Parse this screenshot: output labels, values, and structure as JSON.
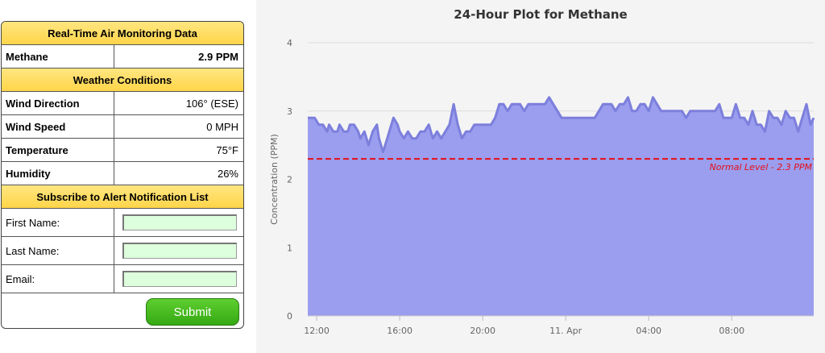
{
  "monitor": {
    "title": "Real-Time Air Monitoring Data",
    "gas_label": "Methane",
    "gas_value": "2.9 PPM"
  },
  "weather": {
    "title": "Weather Conditions",
    "rows": [
      {
        "label": "Wind Direction",
        "value": "106° (ESE)"
      },
      {
        "label": "Wind Speed",
        "value": "0 MPH"
      },
      {
        "label": "Temperature",
        "value": "75°F"
      },
      {
        "label": "Humidity",
        "value": "26%"
      }
    ]
  },
  "subscribe": {
    "title": "Subscribe to Alert Notification List",
    "first_name_label": "First Name:",
    "last_name_label": "Last Name:",
    "email_label": "Email:",
    "first_name_value": "",
    "last_name_value": "",
    "email_value": "",
    "submit_label": "Submit"
  },
  "colors": {
    "header_yellow": "#ffd54a",
    "submit_green": "#35a914",
    "area_fill": "#9b9eee",
    "line_stroke": "#7c7fdc",
    "threshold_red": "#e3101a"
  },
  "chart_data": {
    "type": "area",
    "title": "24-Hour Plot for Methane",
    "xlabel": "",
    "ylabel": "Concentration (PPM)",
    "ylim": [
      0,
      4
    ],
    "yticks": [
      "0",
      "1",
      "2",
      "3",
      "4"
    ],
    "xtick_labels": [
      "12:00",
      "16:00",
      "20:00",
      "11. Apr",
      "04:00",
      "08:00"
    ],
    "xtick_hours": [
      0,
      4,
      8,
      12,
      16,
      20
    ],
    "xlim_hours": [
      -0.43,
      23.95
    ],
    "grid": true,
    "threshold": {
      "value": 2.3,
      "label": "Normal Level - 2.3 PPM"
    },
    "series": [
      {
        "x": [
          -0.43,
          -0.1,
          0.1,
          0.3,
          0.5,
          0.6,
          0.8,
          1.0,
          1.1,
          1.3,
          1.5,
          1.6,
          1.8,
          2.0,
          2.1,
          2.3,
          2.5,
          2.7,
          2.9,
          3.0,
          3.2,
          3.4,
          3.5,
          3.7,
          3.9,
          4.0,
          4.2,
          4.4,
          4.6,
          4.8,
          5.0,
          5.2,
          5.4,
          5.6,
          5.8,
          6.0,
          6.2,
          6.4,
          6.6,
          6.8,
          7.0,
          7.2,
          7.4,
          7.6,
          7.8,
          8.0,
          8.2,
          8.4,
          8.6,
          8.8,
          9.0,
          9.2,
          9.4,
          9.6,
          9.8,
          10.0,
          10.2,
          10.4,
          10.6,
          10.8,
          11.0,
          11.2,
          11.4,
          11.6,
          11.8,
          12.0,
          12.2,
          12.4,
          12.6,
          12.8,
          13.0,
          13.2,
          13.4,
          13.6,
          13.8,
          14.0,
          14.2,
          14.4,
          14.6,
          14.8,
          15.0,
          15.2,
          15.4,
          15.6,
          15.8,
          16.0,
          16.2,
          16.4,
          16.6,
          16.8,
          17.0,
          17.2,
          17.4,
          17.6,
          17.8,
          18.0,
          18.2,
          18.4,
          18.6,
          18.8,
          19.0,
          19.2,
          19.4,
          19.6,
          19.8,
          20.0,
          20.2,
          20.4,
          20.6,
          20.8,
          21.0,
          21.2,
          21.4,
          21.6,
          21.8,
          22.0,
          22.2,
          22.4,
          22.6,
          22.8,
          23.0,
          23.2,
          23.4,
          23.6,
          23.8,
          23.95
        ],
        "y": [
          2.9,
          2.9,
          2.8,
          2.8,
          2.7,
          2.8,
          2.7,
          2.7,
          2.8,
          2.7,
          2.7,
          2.8,
          2.8,
          2.7,
          2.6,
          2.7,
          2.5,
          2.7,
          2.8,
          2.6,
          2.4,
          2.6,
          2.7,
          2.9,
          2.8,
          2.7,
          2.6,
          2.7,
          2.6,
          2.6,
          2.7,
          2.7,
          2.8,
          2.6,
          2.7,
          2.6,
          2.7,
          2.8,
          3.1,
          2.8,
          2.6,
          2.7,
          2.7,
          2.8,
          2.8,
          2.8,
          2.8,
          2.8,
          2.9,
          3.1,
          3.1,
          3.0,
          3.1,
          3.1,
          3.1,
          3.0,
          3.1,
          3.1,
          3.1,
          3.1,
          3.1,
          3.2,
          3.1,
          3.0,
          2.9,
          2.9,
          2.9,
          2.9,
          2.9,
          2.9,
          2.9,
          2.9,
          2.9,
          3.0,
          3.1,
          3.1,
          3.1,
          3.0,
          3.1,
          3.1,
          3.2,
          3.0,
          3.0,
          3.1,
          3.1,
          3.0,
          3.2,
          3.1,
          3.0,
          3.0,
          3.0,
          3.0,
          3.0,
          3.0,
          2.9,
          3.0,
          3.0,
          3.0,
          3.0,
          3.0,
          3.0,
          3.0,
          3.1,
          2.9,
          2.9,
          2.9,
          3.1,
          2.9,
          2.9,
          2.8,
          3.0,
          2.8,
          2.8,
          2.7,
          3.0,
          2.9,
          2.9,
          2.8,
          3.0,
          2.9,
          2.9,
          2.7,
          2.9,
          3.1,
          2.8,
          2.9
        ]
      }
    ]
  }
}
